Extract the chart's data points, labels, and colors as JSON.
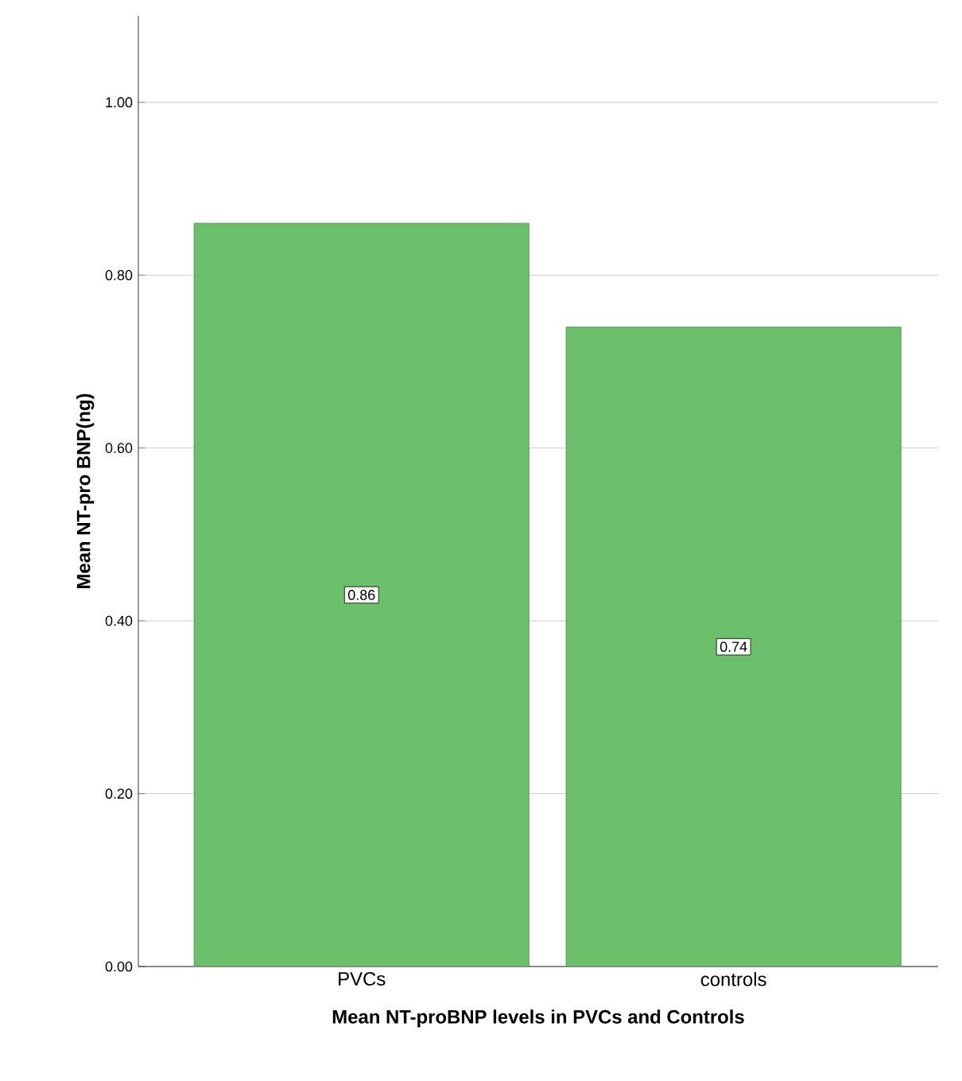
{
  "chart_data": {
    "type": "bar",
    "xlabel": "Mean NT-proBNP levels in PVCs and Controls",
    "ylabel": "Mean NT-pro BNP(ng)",
    "categories": [
      "PVCs",
      "controls"
    ],
    "values": [
      0.86,
      0.74
    ],
    "color": "#6cc06c",
    "ylim": [
      0,
      1.1
    ],
    "yticks": [
      {
        "value": 0,
        "label": "0.00"
      },
      {
        "value": 0.2,
        "label": "0.20"
      },
      {
        "value": 0.4,
        "label": "0.40"
      },
      {
        "value": 0.6,
        "label": "0.60"
      },
      {
        "value": 0.8,
        "label": "0.80"
      },
      {
        "value": 1.0,
        "label": "1.00"
      }
    ],
    "grid": "y",
    "data_labels": true
  }
}
